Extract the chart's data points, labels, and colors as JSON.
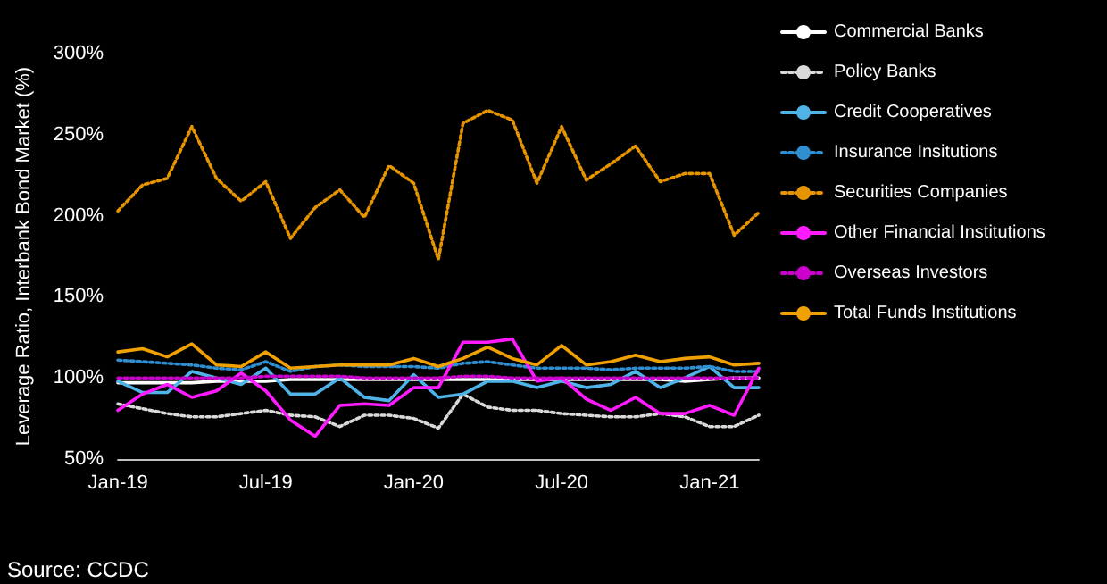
{
  "chart_data": {
    "type": "line",
    "ylabel": "Leverage Ratio, Interbank Bond Market (%)",
    "categories": [
      "Jan-19",
      null,
      null,
      null,
      null,
      null,
      "Jul-19",
      null,
      null,
      null,
      null,
      null,
      "Jan-20",
      null,
      null,
      null,
      null,
      null,
      "Jul-20",
      null,
      null,
      null,
      null,
      null,
      "Jan-21",
      null,
      null
    ],
    "ylim": [
      50,
      300
    ],
    "yticks": [
      {
        "value": 50,
        "label": "50%"
      },
      {
        "value": 100,
        "label": "100%"
      },
      {
        "value": 150,
        "label": "150%"
      },
      {
        "value": 200,
        "label": "200%"
      },
      {
        "value": 250,
        "label": "250%"
      },
      {
        "value": 300,
        "label": "300%"
      }
    ],
    "grid": false,
    "legend": "right",
    "marker": "none",
    "annotations": [
      "Source: CCDC"
    ],
    "series": [
      {
        "name": "Commercial Banks",
        "color": "#ffffff",
        "line_style": "solid",
        "values": [
          97,
          97,
          97,
          97,
          98,
          98,
          98,
          99,
          99,
          99,
          99,
          99,
          99,
          99,
          99,
          99,
          99,
          99,
          99,
          99,
          99,
          99,
          99,
          98,
          99,
          100,
          100
        ]
      },
      {
        "name": "Policy Banks",
        "color": "#d9d9d9",
        "line_style": "dotted",
        "values": [
          84,
          81,
          78,
          76,
          76,
          78,
          80,
          77,
          76,
          70,
          77,
          77,
          75,
          69,
          90,
          82,
          80,
          80,
          78,
          77,
          76,
          76,
          78,
          76,
          70,
          70,
          77
        ]
      },
      {
        "name": "Credit Cooperatives",
        "color": "#4fb3e8",
        "line_style": "solid",
        "values": [
          98,
          91,
          91,
          104,
          100,
          96,
          106,
          90,
          90,
          100,
          88,
          86,
          102,
          88,
          90,
          98,
          98,
          94,
          98,
          94,
          96,
          104,
          94,
          100,
          107,
          94,
          94
        ]
      },
      {
        "name": "Insurance Insitutions",
        "color": "#2f8fd0",
        "line_style": "dotted",
        "values": [
          111,
          110,
          109,
          108,
          106,
          105,
          110,
          104,
          107,
          108,
          107,
          107,
          107,
          106,
          109,
          110,
          108,
          106,
          106,
          106,
          105,
          106,
          106,
          106,
          107,
          104,
          104
        ]
      },
      {
        "name": "Securities Companies",
        "color": "#e69500",
        "line_style": "dotted",
        "values": [
          203,
          219,
          223,
          255,
          223,
          209,
          221,
          186,
          205,
          216,
          199,
          231,
          220,
          173,
          257,
          265,
          259,
          220,
          255,
          222,
          232,
          243,
          221,
          226,
          226,
          188,
          202
        ]
      },
      {
        "name": "Other Financial Institutions",
        "color": "#ff1aff",
        "line_style": "solid",
        "values": [
          80,
          90,
          96,
          88,
          92,
          103,
          92,
          74,
          64,
          83,
          84,
          83,
          94,
          94,
          122,
          122,
          124,
          98,
          100,
          87,
          80,
          88,
          78,
          78,
          83,
          77,
          106
        ]
      },
      {
        "name": "Overseas Investors",
        "color": "#cc00cc",
        "line_style": "dotted",
        "values": [
          100,
          100,
          100,
          100,
          100,
          100,
          101,
          101,
          101,
          101,
          100,
          100,
          100,
          100,
          101,
          101,
          100,
          100,
          100,
          100,
          100,
          100,
          100,
          100,
          100,
          100,
          100
        ]
      },
      {
        "name": "Total Funds Institutions",
        "color": "#f0a000",
        "line_style": "solid",
        "values": [
          116,
          118,
          113,
          121,
          108,
          107,
          116,
          106,
          107,
          108,
          108,
          108,
          112,
          107,
          112,
          119,
          112,
          108,
          120,
          108,
          110,
          114,
          110,
          112,
          113,
          108,
          109
        ]
      }
    ]
  }
}
